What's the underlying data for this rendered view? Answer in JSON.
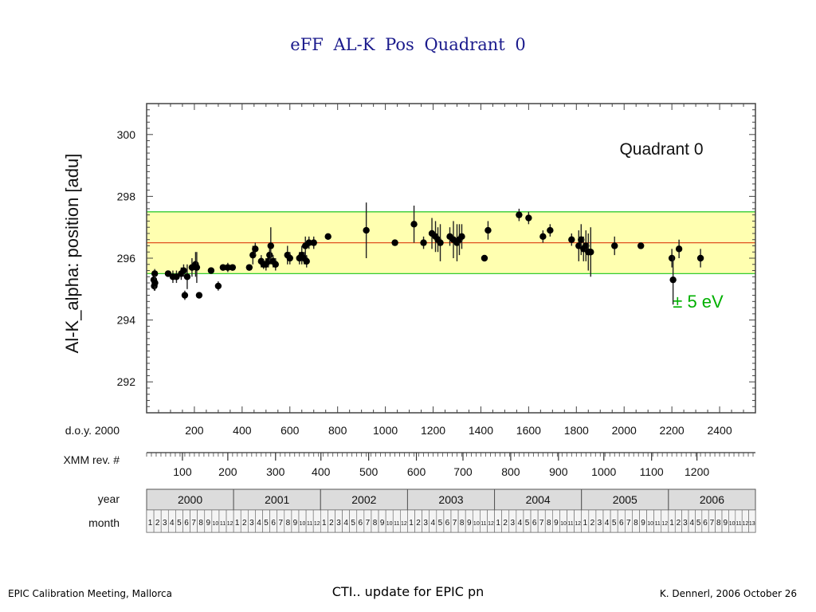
{
  "slide": {
    "title": "eFF   AL-K   Pos   Quadrant 0",
    "footer_left": "EPIC Calibration Meeting, Mallorca",
    "footer_center": "CTI.. update for EPIC pn",
    "footer_right": "K. Dennerl, 2006 October 26"
  },
  "chart_data": {
    "type": "scatter",
    "title": "Quadrant 0",
    "ylabel": "Al-K_alpha:  position  [adu]",
    "xlabel": "d.o.y. 2000",
    "xlim": [
      0,
      2550
    ],
    "ylim": [
      291.0,
      301.0
    ],
    "yticks": [
      292,
      294,
      296,
      298,
      300
    ],
    "xticks": [
      200,
      400,
      600,
      800,
      1000,
      1200,
      1400,
      1600,
      1800,
      2000,
      2200,
      2400
    ],
    "band": {
      "center": 296.5,
      "low": 295.5,
      "high": 297.5,
      "label": "± 5 eV",
      "fill": "#ffffb0",
      "edge": "#33cc33",
      "center_color": "#e05020"
    },
    "series": [
      {
        "points": [
          [
            30,
            295.3,
            0.2
          ],
          [
            32,
            295.1,
            0.15
          ],
          [
            34,
            295.5,
            0.15
          ],
          [
            35,
            295.2,
            0.25
          ],
          [
            90,
            295.5,
            0.1
          ],
          [
            110,
            295.4,
            0.2
          ],
          [
            125,
            295.4,
            0.2
          ],
          [
            145,
            295.5,
            0.2
          ],
          [
            155,
            295.6,
            0.2
          ],
          [
            160,
            294.8,
            0.15
          ],
          [
            170,
            295.4,
            0.4
          ],
          [
            190,
            295.7,
            0.3
          ],
          [
            205,
            295.8,
            0.4
          ],
          [
            210,
            295.7,
            0.5
          ],
          [
            220,
            294.8,
            0.1
          ],
          [
            270,
            295.6,
            0.1
          ],
          [
            300,
            295.1,
            0.15
          ],
          [
            320,
            295.7,
            0.1
          ],
          [
            340,
            295.7,
            0.15
          ],
          [
            360,
            295.7,
            0.1
          ],
          [
            430,
            295.7,
            0.1
          ],
          [
            445,
            296.1,
            0.3
          ],
          [
            455,
            296.3,
            0.2
          ],
          [
            480,
            295.9,
            0.2
          ],
          [
            490,
            295.8,
            0.15
          ],
          [
            500,
            295.8,
            0.2
          ],
          [
            510,
            295.9,
            0.2
          ],
          [
            515,
            296.1,
            0.2
          ],
          [
            520,
            296.4,
            0.6
          ],
          [
            530,
            295.9,
            0.2
          ],
          [
            540,
            295.8,
            0.2
          ],
          [
            590,
            296.1,
            0.3
          ],
          [
            600,
            296.0,
            0.2
          ],
          [
            640,
            296.0,
            0.2
          ],
          [
            650,
            296.1,
            0.3
          ],
          [
            660,
            296.0,
            0.2
          ],
          [
            665,
            296.4,
            0.3
          ],
          [
            670,
            295.9,
            0.2
          ],
          [
            680,
            296.5,
            0.2
          ],
          [
            700,
            296.5,
            0.2
          ],
          [
            760,
            296.7,
            0.1
          ],
          [
            920,
            296.9,
            0.9
          ],
          [
            1040,
            296.5,
            0.1
          ],
          [
            1120,
            297.1,
            0.6
          ],
          [
            1160,
            296.5,
            0.2
          ],
          [
            1195,
            296.8,
            0.5
          ],
          [
            1210,
            296.7,
            0.5
          ],
          [
            1220,
            296.6,
            0.4
          ],
          [
            1230,
            296.5,
            0.6
          ],
          [
            1270,
            296.7,
            0.3
          ],
          [
            1285,
            296.6,
            0.6
          ],
          [
            1300,
            296.5,
            0.6
          ],
          [
            1310,
            296.6,
            0.5
          ],
          [
            1320,
            296.7,
            0.4
          ],
          [
            1415,
            296.0,
            0.1
          ],
          [
            1430,
            296.9,
            0.3
          ],
          [
            1560,
            297.4,
            0.2
          ],
          [
            1600,
            297.3,
            0.2
          ],
          [
            1660,
            296.7,
            0.2
          ],
          [
            1690,
            296.9,
            0.2
          ],
          [
            1780,
            296.6,
            0.2
          ],
          [
            1810,
            296.4,
            0.5
          ],
          [
            1820,
            296.6,
            0.5
          ],
          [
            1830,
            296.3,
            0.4
          ],
          [
            1840,
            296.4,
            0.5
          ],
          [
            1850,
            296.2,
            0.6
          ],
          [
            1860,
            296.2,
            0.8
          ],
          [
            1960,
            296.4,
            0.3
          ],
          [
            2070,
            296.4,
            0.1
          ],
          [
            2200,
            296.0,
            0.3
          ],
          [
            2205,
            295.3,
            0.8
          ],
          [
            2230,
            296.3,
            0.3
          ],
          [
            2320,
            296.0,
            0.3
          ]
        ]
      }
    ]
  },
  "axes_below": {
    "doy_label": "d.o.y. 2000",
    "xmm_label": "XMM rev. #",
    "xmm_ticks": [
      {
        "label": "100",
        "doy": 150
      },
      {
        "label": "200",
        "doy": 340
      },
      {
        "label": "300",
        "doy": 540
      },
      {
        "label": "400",
        "doy": 730
      },
      {
        "label": "500",
        "doy": 930
      },
      {
        "label": "600",
        "doy": 1130
      },
      {
        "label": "700",
        "doy": 1325
      },
      {
        "label": "800",
        "doy": 1525
      },
      {
        "label": "900",
        "doy": 1725
      },
      {
        "label": "1000",
        "doy": 1915
      },
      {
        "label": "1100",
        "doy": 2115
      },
      {
        "label": "1200",
        "doy": 2305
      }
    ],
    "year_label": "year",
    "month_label": "month",
    "years": [
      "2000",
      "2001",
      "2002",
      "2003",
      "2004",
      "2005",
      "2006"
    ],
    "months": [
      "1",
      "2",
      "3",
      "4",
      "5",
      "6",
      "7",
      "8",
      "9",
      "10",
      "11",
      "12"
    ],
    "last_year_months": [
      "1",
      "2",
      "3",
      "4",
      "5",
      "6",
      "7",
      "8",
      "9",
      "10",
      "11",
      "12",
      "13"
    ]
  }
}
